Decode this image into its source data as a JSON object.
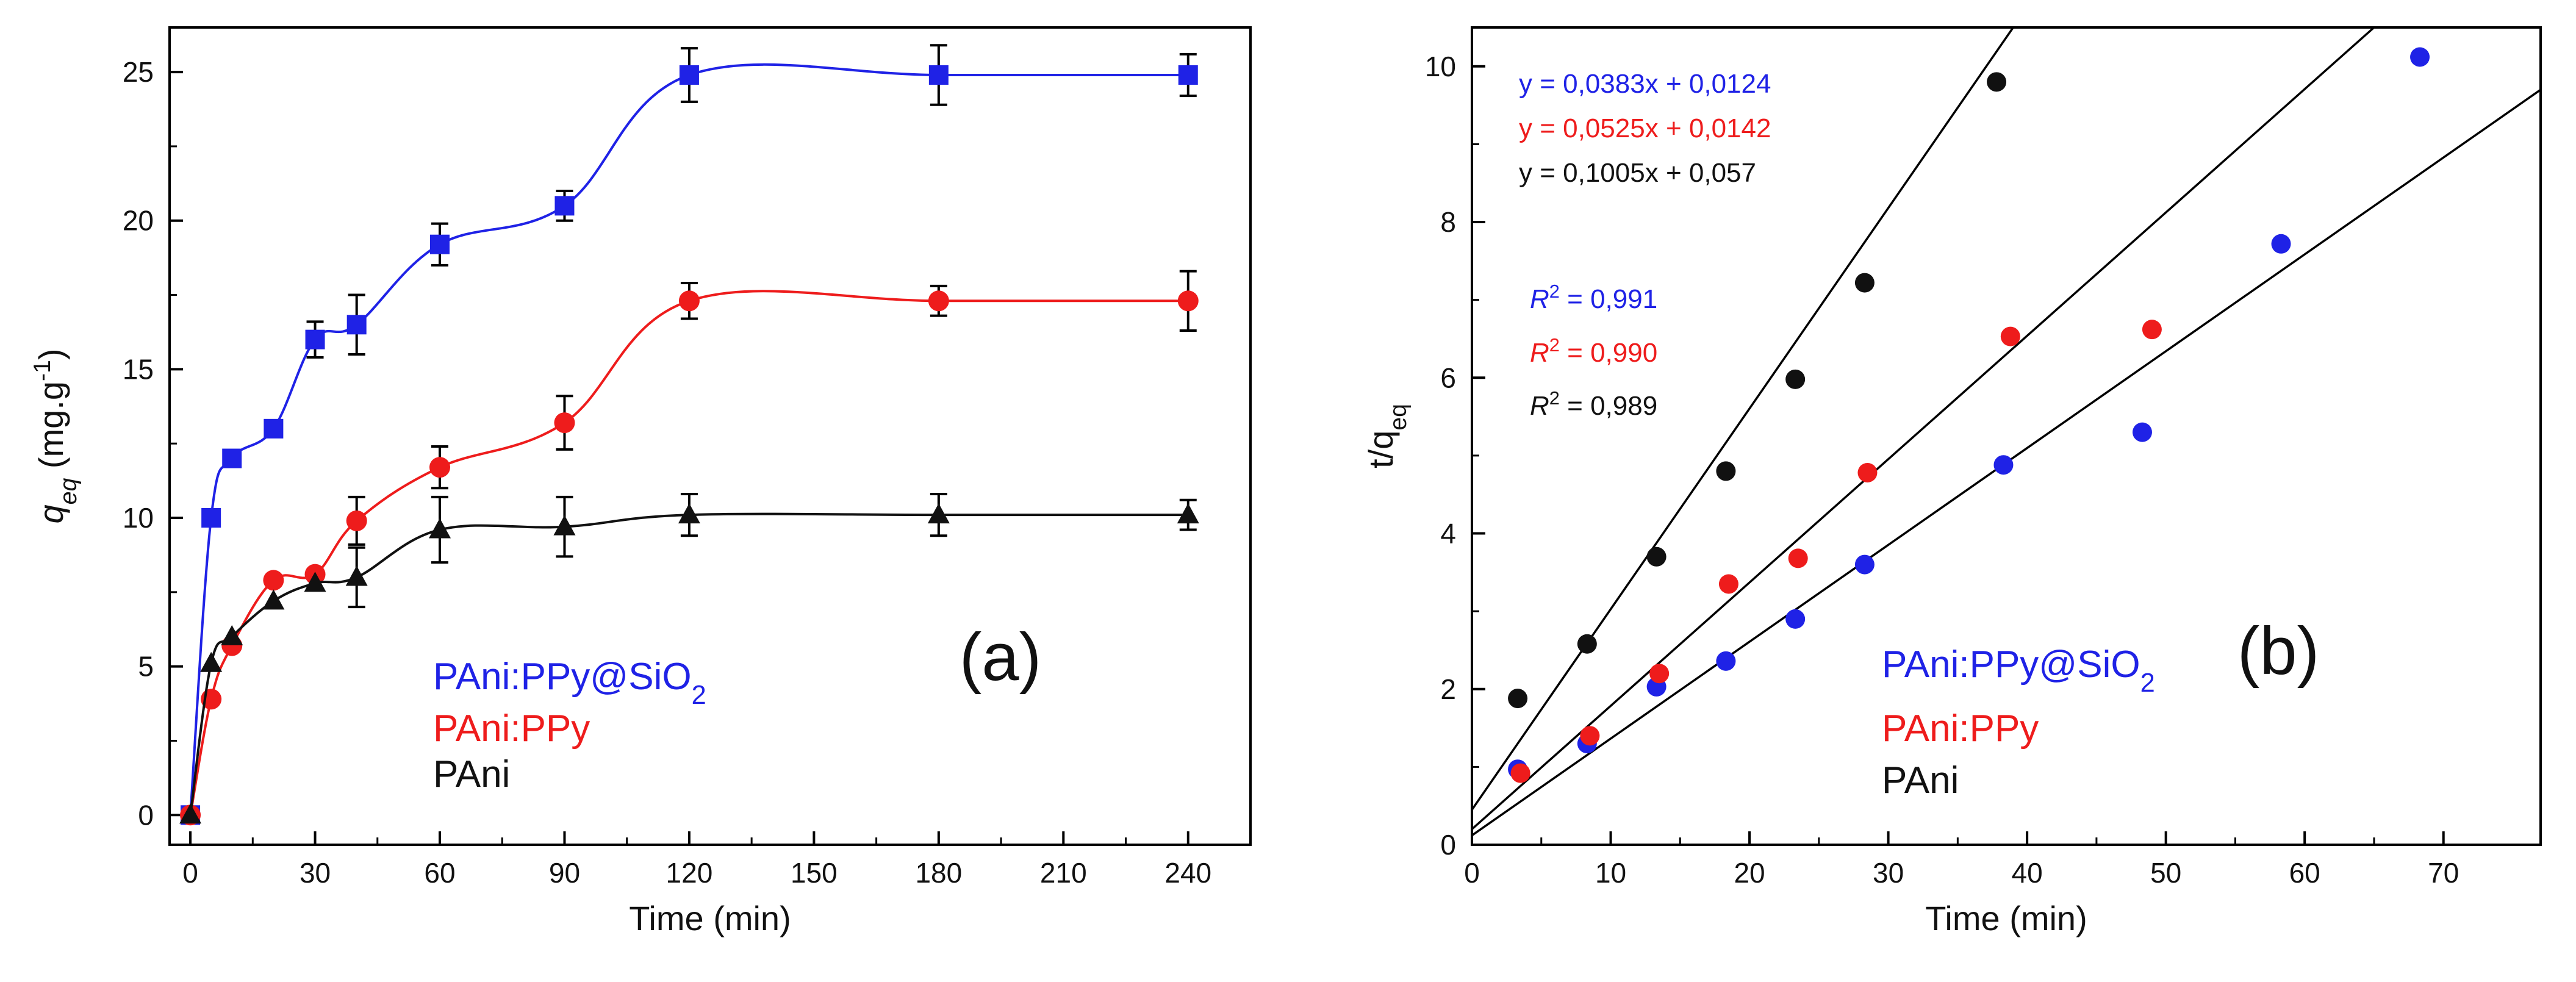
{
  "colors": {
    "blue": "#1f22e6",
    "red": "#ee1c1c",
    "black": "#111111"
  },
  "chart_data": [
    {
      "type": "line",
      "panel_label": "(a)",
      "xlabel": "Time (min)",
      "ylabel_main": "q",
      "ylabel_sub": "eq",
      "ylabel_unit_pre": " (mg.g",
      "ylabel_unit_sup": "-1",
      "ylabel_unit_post": ")",
      "xlim": [
        -5,
        255
      ],
      "ylim": [
        -1,
        26.5
      ],
      "xticks": [
        0,
        30,
        60,
        90,
        120,
        150,
        180,
        210,
        240
      ],
      "yticks": [
        0,
        5,
        10,
        15,
        20,
        25
      ],
      "legend": [
        {
          "text": "PAni:PPy@SiO",
          "sub": "2",
          "color": "blue"
        },
        {
          "text": "PAni:PPy",
          "sub": "",
          "color": "red"
        },
        {
          "text": "PAni",
          "sub": "",
          "color": "black"
        }
      ],
      "series": [
        {
          "name": "PAni:PPy@SiO2",
          "color": "blue",
          "marker": "square",
          "x": [
            0,
            5,
            10,
            20,
            30,
            40,
            60,
            90,
            120,
            180,
            240
          ],
          "y": [
            0,
            10.0,
            12.0,
            13.0,
            16.0,
            16.5,
            19.2,
            20.5,
            24.9,
            24.9,
            24.9
          ],
          "err": [
            0,
            0,
            0,
            0,
            0.6,
            1.0,
            0.7,
            0.5,
            0.9,
            1.0,
            0.7
          ]
        },
        {
          "name": "PAni:PPy",
          "color": "red",
          "marker": "circle",
          "x": [
            0,
            5,
            10,
            20,
            30,
            40,
            60,
            90,
            120,
            180,
            240
          ],
          "y": [
            0,
            3.9,
            5.7,
            7.9,
            8.1,
            9.9,
            11.7,
            13.2,
            17.3,
            17.3,
            17.3
          ],
          "err": [
            0,
            0,
            0,
            0,
            0,
            0.8,
            0.7,
            0.9,
            0.6,
            0.5,
            1.0
          ]
        },
        {
          "name": "PAni",
          "color": "black",
          "marker": "triangle",
          "x": [
            0,
            5,
            10,
            20,
            30,
            40,
            60,
            90,
            120,
            180,
            240
          ],
          "y": [
            0,
            5.1,
            6.0,
            7.2,
            7.8,
            8.0,
            9.6,
            9.7,
            10.1,
            10.1,
            10.1
          ],
          "err": [
            0,
            0,
            0,
            0,
            0,
            1.0,
            1.1,
            1.0,
            0.7,
            0.7,
            0.5
          ]
        }
      ]
    },
    {
      "type": "scatter",
      "panel_label": "(b)",
      "xlabel": "Time (min)",
      "ylabel_main": "t/q",
      "ylabel_sub": "eq",
      "xlim": [
        0,
        77
      ],
      "ylim": [
        0,
        10.5
      ],
      "xticks": [
        0,
        10,
        20,
        30,
        40,
        50,
        60,
        70
      ],
      "yticks": [
        0,
        2,
        4,
        6,
        8,
        10
      ],
      "equations": [
        {
          "text": "y = 0,0383x + 0,0124",
          "color": "blue"
        },
        {
          "text": "y = 0,0525x + 0,0142",
          "color": "red"
        },
        {
          "text": "y = 0,1005x + 0,057",
          "color": "black"
        }
      ],
      "r2": [
        {
          "label": "R",
          "sup": "2",
          "value": " = 0,991",
          "label_color": "blue",
          "value_color": "blue"
        },
        {
          "label": "R",
          "sup": "2",
          "value": " = 0,990",
          "label_color": "red",
          "value_color": "red"
        },
        {
          "label": "R",
          "sup": "2",
          "value": " = 0,989",
          "label_color": "black",
          "value_color": "black"
        }
      ],
      "legend": [
        {
          "text": "PAni:PPy@SiO",
          "sub": "2",
          "color": "blue"
        },
        {
          "text": "PAni:PPy",
          "sub": "",
          "color": "red"
        },
        {
          "text": "PAni",
          "sub": "",
          "color": "black"
        }
      ],
      "fit_lines": [
        {
          "points": [
            [
              0,
              0.12
            ],
            [
              77,
              9.7
            ]
          ]
        },
        {
          "points": [
            [
              0,
              0.2
            ],
            [
              65,
              10.5
            ]
          ]
        },
        {
          "points": [
            [
              0,
              0.45
            ],
            [
              39,
              10.5
            ]
          ]
        }
      ],
      "series": [
        {
          "name": "PAni:PPy@SiO2",
          "color": "blue",
          "x": [
            3.3,
            8.3,
            13.3,
            18.3,
            23.3,
            28.3,
            38.3,
            48.3,
            58.3,
            68.3
          ],
          "y": [
            0.97,
            1.3,
            2.03,
            2.36,
            2.9,
            3.6,
            4.88,
            5.3,
            7.72,
            10.12
          ]
        },
        {
          "name": "PAni:PPy",
          "color": "red",
          "x": [
            3.5,
            8.5,
            13.5,
            18.5,
            23.5,
            28.5,
            38.8,
            49.0
          ],
          "y": [
            0.92,
            1.4,
            2.2,
            3.35,
            3.68,
            4.78,
            6.53,
            6.62
          ]
        },
        {
          "name": "PAni",
          "color": "black",
          "x": [
            3.3,
            8.3,
            13.3,
            18.3,
            23.3,
            28.3,
            37.8
          ],
          "y": [
            1.88,
            2.58,
            3.7,
            4.8,
            5.98,
            7.22,
            9.8
          ]
        }
      ]
    }
  ]
}
